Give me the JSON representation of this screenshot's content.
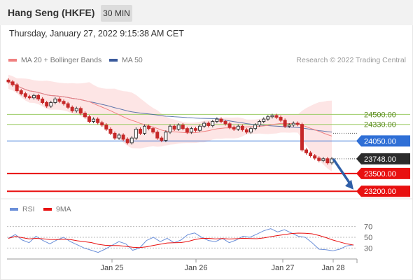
{
  "header": {
    "title": "Hang Seng (HKFE)",
    "interval": "30 MIN",
    "datetime": "Thursday, January 27, 2022 9:15:38 AM CET"
  },
  "legend": {
    "ma20_label": "MA 20 + Bollinger Bands",
    "ma50_label": "MA 50",
    "credit": "Research © 2022 Trading Central"
  },
  "rsi_legend": {
    "rsi_label": "RSI",
    "ma_label": "9MA"
  },
  "colors": {
    "ma20": "#f08080",
    "bollinger_band": "#fde0e0",
    "ma50": "#3a5a9c",
    "resistance": "#9ccc65",
    "pivot": "#2f6fd6",
    "support": "#e81010",
    "current_price": "#2b2b2b",
    "arrow": "#2f5fa8",
    "rsi": "#6b8fd9",
    "rsi_ma": "#e81010",
    "candle_up": "#3a3a3a",
    "candle_down": "#c62828"
  },
  "chart_data": [
    {
      "type": "candlestick",
      "title": "Hang Seng (HKFE)",
      "x_ticks": [
        "Jan 25",
        "Jan 26",
        "Jan 27",
        "Jan 28"
      ],
      "ylim": [
        23120,
        25250
      ],
      "levels": [
        {
          "value": 24500,
          "label": "24500.00",
          "kind": "resistance"
        },
        {
          "value": 24330,
          "label": "24330.00",
          "kind": "resistance"
        },
        {
          "value": 24050,
          "label": "24050.00",
          "kind": "pivot"
        },
        {
          "value": 23748,
          "label": "23748.00",
          "kind": "current"
        },
        {
          "value": 23500,
          "label": "23500.00",
          "kind": "support"
        },
        {
          "value": 23200,
          "label": "23200.00",
          "kind": "support"
        }
      ],
      "close": [
        25050,
        25000,
        24900,
        24850,
        24800,
        24780,
        24820,
        24760,
        24700,
        24640,
        24700,
        24760,
        24720,
        24680,
        24620,
        24560,
        24600,
        24520,
        24460,
        24380,
        24420,
        24360,
        24320,
        24250,
        24180,
        24100,
        24150,
        24080,
        24020,
        24100,
        24250,
        24180,
        24300,
        24260,
        24200,
        24100,
        24060,
        24200,
        24300,
        24250,
        24320,
        24260,
        24200,
        24260,
        24230,
        24300,
        24350,
        24310,
        24380,
        24420,
        24380,
        24340,
        24280,
        24250,
        24300,
        24240,
        24200,
        24260,
        24320,
        24380,
        24420,
        24460,
        24480,
        24450,
        24400,
        24300,
        24320,
        24350,
        24330,
        23900,
        23850,
        23800,
        23760,
        23720,
        23750,
        23680,
        23748
      ],
      "series": [
        {
          "name": "MA 50"
        },
        {
          "name": "MA 20 + Bollinger Bands"
        }
      ]
    },
    {
      "type": "line",
      "title": "RSI",
      "ylim": [
        15,
        85
      ],
      "y_ticks": [
        70,
        50,
        30
      ],
      "rsi": [
        48,
        55,
        45,
        40,
        52,
        44,
        38,
        45,
        50,
        42,
        36,
        30,
        26,
        22,
        28,
        35,
        42,
        38,
        26,
        30,
        44,
        50,
        42,
        48,
        40,
        45,
        55,
        58,
        50,
        44,
        42,
        48,
        40,
        45,
        52,
        50,
        56,
        62,
        66,
        60,
        64,
        58,
        52,
        50,
        40,
        28,
        27,
        25,
        28,
        34,
        36
      ],
      "series": [
        {
          "name": "RSI"
        },
        {
          "name": "9MA"
        }
      ]
    }
  ]
}
